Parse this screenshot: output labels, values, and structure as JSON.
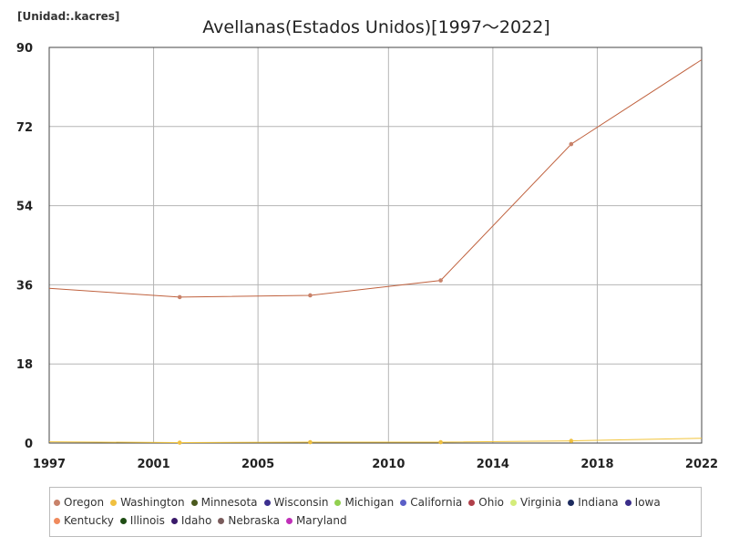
{
  "header": {
    "unit_label": "[Unidad:.kacres]",
    "title": "Avellanas(Estados Unidos)[1997～2022]"
  },
  "chart_data": {
    "type": "line",
    "title": "Avellanas(Estados Unidos)[1997～2022]",
    "unit": "[Unidad:.kacres]",
    "xlabel": "",
    "ylabel": "",
    "xlim": [
      1997,
      2022
    ],
    "ylim": [
      0,
      90
    ],
    "x_ticks": [
      1997,
      2001,
      2005,
      2010,
      2014,
      2018,
      2022
    ],
    "y_ticks": [
      0,
      18,
      36,
      54,
      72,
      90
    ],
    "grid": true,
    "legend_position": "bottom",
    "series": [
      {
        "name": "Oregon",
        "color": "#c8826a",
        "line_color": "#c0623f",
        "points": [
          [
            1997,
            35.2
          ],
          [
            2002,
            33.2
          ],
          [
            2007,
            33.6
          ],
          [
            2012,
            37.0
          ],
          [
            2017,
            68.0
          ],
          [
            2022,
            87.2
          ]
        ]
      },
      {
        "name": "Washington",
        "color": "#f0c040",
        "line_color": "#f2c43a",
        "points": [
          [
            1997,
            0.3
          ],
          [
            2002,
            0.1
          ],
          [
            2007,
            0.2
          ],
          [
            2012,
            0.2
          ],
          [
            2017,
            0.5
          ],
          [
            2022,
            1.1
          ]
        ]
      },
      {
        "name": "Minnesota",
        "color": "#4b5a1e",
        "points": []
      },
      {
        "name": "Wisconsin",
        "color": "#3c2f8f",
        "points": []
      },
      {
        "name": "Michigan",
        "color": "#92d050",
        "points": []
      },
      {
        "name": "California",
        "color": "#5b5fc7",
        "points": []
      },
      {
        "name": "Ohio",
        "color": "#b0404a",
        "points": []
      },
      {
        "name": "Virginia",
        "color": "#d4ec7a",
        "points": []
      },
      {
        "name": "Indiana",
        "color": "#1c2b5e",
        "points": []
      },
      {
        "name": "Iowa",
        "color": "#3b2e8a",
        "points": []
      },
      {
        "name": "Kentucky",
        "color": "#f08a5d",
        "points": []
      },
      {
        "name": "Illinois",
        "color": "#1f4d14",
        "points": []
      },
      {
        "name": "Idaho",
        "color": "#3a1a6a",
        "points": []
      },
      {
        "name": "Nebraska",
        "color": "#7a5c5c",
        "points": []
      },
      {
        "name": "Maryland",
        "color": "#c030b8",
        "points": []
      }
    ]
  }
}
